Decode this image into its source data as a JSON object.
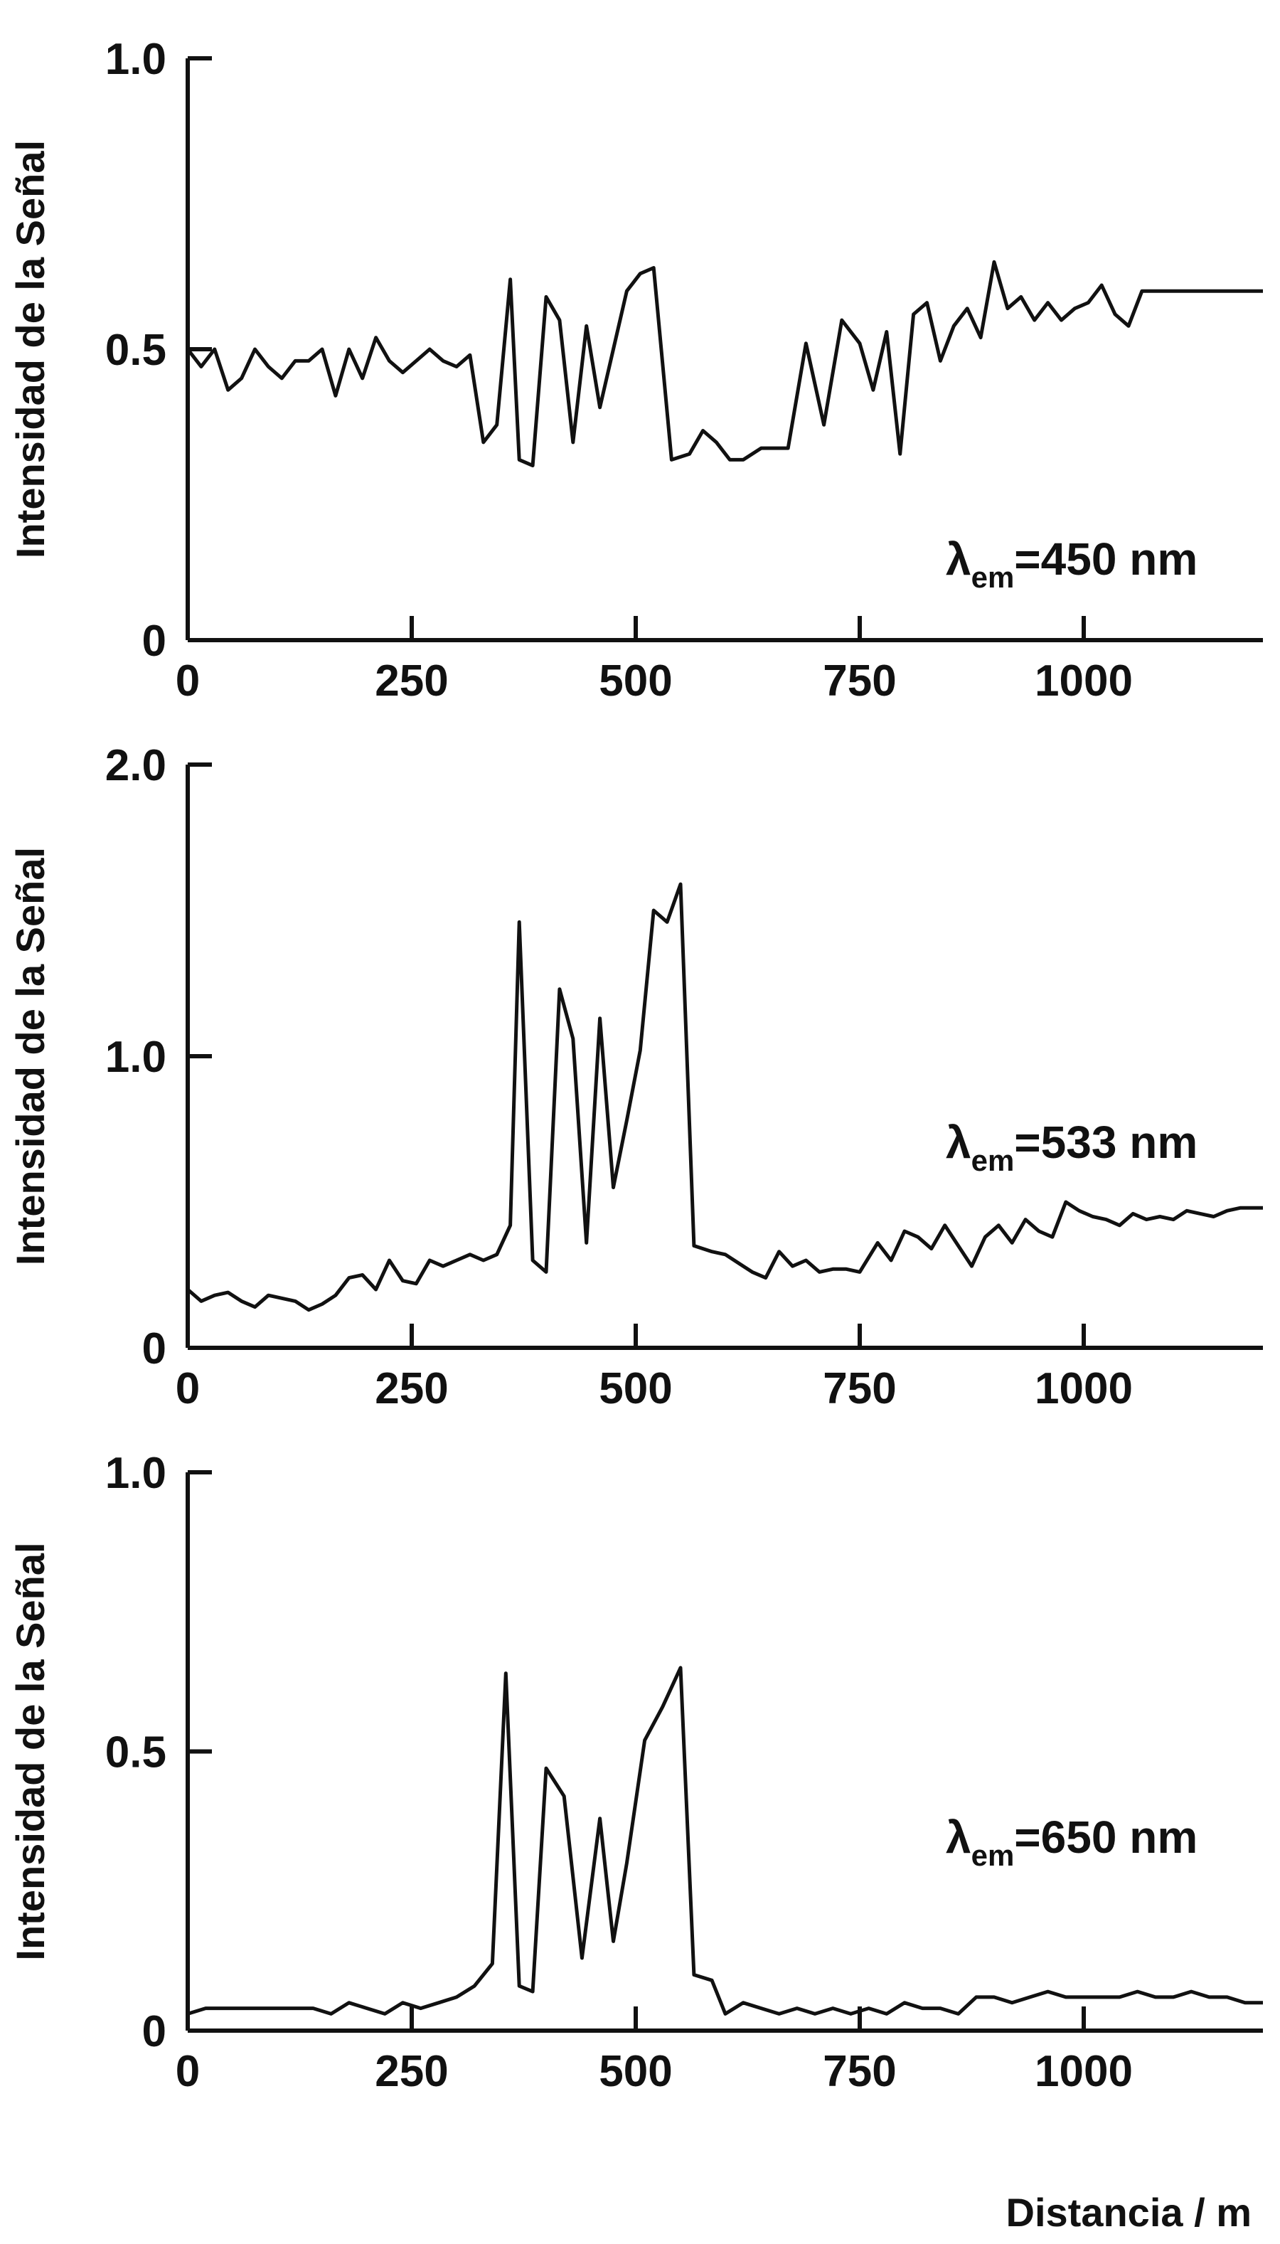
{
  "chart_data": [
    {
      "type": "line",
      "ylabel": "Intensidad de la Señal",
      "annotation": {
        "lambda": "λ",
        "sub": "em",
        "text": "=450 nm"
      },
      "xlim": [
        0,
        1200
      ],
      "ylim": [
        0,
        1.0
      ],
      "xticks": [
        0,
        250,
        500,
        750,
        1000
      ],
      "yticks": [
        0,
        0.5,
        1.0
      ],
      "ytick_labels": [
        "0",
        "0.5",
        "1.0"
      ],
      "series": [
        {
          "x": [
            0,
            15,
            30,
            45,
            60,
            75,
            90,
            105,
            120,
            135,
            150,
            165,
            180,
            195,
            210,
            225,
            240,
            255,
            270,
            285,
            300,
            315,
            330,
            345,
            360,
            370,
            385,
            400,
            415,
            430,
            445,
            460,
            475,
            490,
            505,
            520,
            540,
            560,
            575,
            590,
            605,
            620,
            640,
            655,
            670,
            690,
            710,
            730,
            750,
            765,
            780,
            795,
            810,
            825,
            840,
            855,
            870,
            885,
            900,
            915,
            930,
            945,
            960,
            975,
            990,
            1005,
            1020,
            1035,
            1050,
            1065,
            1080,
            1095,
            1110,
            1125,
            1140,
            1155,
            1170,
            1185,
            1200
          ],
          "y": [
            0.5,
            0.47,
            0.5,
            0.43,
            0.45,
            0.5,
            0.47,
            0.45,
            0.48,
            0.48,
            0.5,
            0.42,
            0.5,
            0.45,
            0.52,
            0.48,
            0.46,
            0.48,
            0.5,
            0.48,
            0.47,
            0.49,
            0.34,
            0.37,
            0.62,
            0.31,
            0.3,
            0.59,
            0.55,
            0.34,
            0.54,
            0.4,
            0.5,
            0.6,
            0.63,
            0.64,
            0.31,
            0.32,
            0.36,
            0.34,
            0.31,
            0.31,
            0.33,
            0.33,
            0.33,
            0.51,
            0.37,
            0.55,
            0.51,
            0.43,
            0.53,
            0.32,
            0.56,
            0.58,
            0.48,
            0.54,
            0.57,
            0.52,
            0.65,
            0.57,
            0.59,
            0.55,
            0.58,
            0.55,
            0.57,
            0.58,
            0.61,
            0.56,
            0.54,
            0.6,
            0.6,
            0.6,
            0.6,
            0.6,
            0.6,
            0.6,
            0.6,
            0.6,
            0.6
          ]
        }
      ]
    },
    {
      "type": "line",
      "ylabel": "Intensidad de la Señal",
      "annotation": {
        "lambda": "λ",
        "sub": "em",
        "text": "=533 nm"
      },
      "xlim": [
        0,
        1200
      ],
      "ylim": [
        0,
        2.0
      ],
      "xticks": [
        0,
        250,
        500,
        750,
        1000
      ],
      "yticks": [
        0,
        1.0,
        2.0
      ],
      "ytick_labels": [
        "0",
        "1.0",
        "2.0"
      ],
      "series": [
        {
          "x": [
            0,
            15,
            30,
            45,
            60,
            75,
            90,
            105,
            120,
            135,
            150,
            165,
            180,
            195,
            210,
            225,
            240,
            255,
            270,
            285,
            300,
            315,
            330,
            345,
            360,
            370,
            385,
            400,
            415,
            430,
            445,
            460,
            475,
            490,
            505,
            520,
            535,
            550,
            565,
            585,
            600,
            615,
            630,
            645,
            660,
            675,
            690,
            705,
            720,
            735,
            750,
            770,
            785,
            800,
            815,
            830,
            845,
            860,
            875,
            890,
            905,
            920,
            935,
            950,
            965,
            980,
            995,
            1010,
            1025,
            1040,
            1055,
            1070,
            1085,
            1100,
            1115,
            1130,
            1145,
            1160,
            1175,
            1190,
            1200
          ],
          "y": [
            0.2,
            0.16,
            0.18,
            0.19,
            0.16,
            0.14,
            0.18,
            0.17,
            0.16,
            0.13,
            0.15,
            0.18,
            0.24,
            0.25,
            0.2,
            0.3,
            0.23,
            0.22,
            0.3,
            0.28,
            0.3,
            0.32,
            0.3,
            0.32,
            0.42,
            1.46,
            0.3,
            0.26,
            1.23,
            1.06,
            0.36,
            1.13,
            0.55,
            0.78,
            1.02,
            1.5,
            1.46,
            1.59,
            0.35,
            0.33,
            0.32,
            0.29,
            0.26,
            0.24,
            0.33,
            0.28,
            0.3,
            0.26,
            0.27,
            0.27,
            0.26,
            0.36,
            0.3,
            0.4,
            0.38,
            0.34,
            0.42,
            0.35,
            0.28,
            0.38,
            0.42,
            0.36,
            0.44,
            0.4,
            0.38,
            0.5,
            0.47,
            0.45,
            0.44,
            0.42,
            0.46,
            0.44,
            0.45,
            0.44,
            0.47,
            0.46,
            0.45,
            0.47,
            0.48,
            0.48,
            0.48
          ]
        }
      ]
    },
    {
      "type": "line",
      "ylabel": "Intensidad de la Señal",
      "xlabel": "Distancia / m",
      "annotation": {
        "lambda": "λ",
        "sub": "em",
        "text": "=650 nm"
      },
      "xlim": [
        0,
        1200
      ],
      "ylim": [
        0,
        1.0
      ],
      "xticks": [
        0,
        250,
        500,
        750,
        1000
      ],
      "yticks": [
        0,
        0.5,
        1.0
      ],
      "ytick_labels": [
        "0",
        "0.5",
        "1.0"
      ],
      "series": [
        {
          "x": [
            0,
            20,
            40,
            60,
            80,
            100,
            120,
            140,
            160,
            180,
            200,
            220,
            240,
            260,
            280,
            300,
            320,
            340,
            355,
            370,
            385,
            400,
            420,
            440,
            460,
            475,
            490,
            510,
            530,
            550,
            565,
            585,
            600,
            620,
            640,
            660,
            680,
            700,
            720,
            740,
            760,
            780,
            800,
            820,
            840,
            860,
            880,
            900,
            920,
            940,
            960,
            980,
            1000,
            1020,
            1040,
            1060,
            1080,
            1100,
            1120,
            1140,
            1160,
            1180,
            1200
          ],
          "y": [
            0.03,
            0.04,
            0.04,
            0.04,
            0.04,
            0.04,
            0.04,
            0.04,
            0.03,
            0.05,
            0.04,
            0.03,
            0.05,
            0.04,
            0.05,
            0.06,
            0.08,
            0.12,
            0.64,
            0.08,
            0.07,
            0.47,
            0.42,
            0.13,
            0.38,
            0.16,
            0.3,
            0.52,
            0.58,
            0.65,
            0.1,
            0.09,
            0.03,
            0.05,
            0.04,
            0.03,
            0.04,
            0.03,
            0.04,
            0.03,
            0.04,
            0.03,
            0.05,
            0.04,
            0.04,
            0.03,
            0.06,
            0.06,
            0.05,
            0.06,
            0.07,
            0.06,
            0.06,
            0.06,
            0.06,
            0.07,
            0.06,
            0.06,
            0.07,
            0.06,
            0.06,
            0.05,
            0.05
          ]
        }
      ]
    }
  ]
}
